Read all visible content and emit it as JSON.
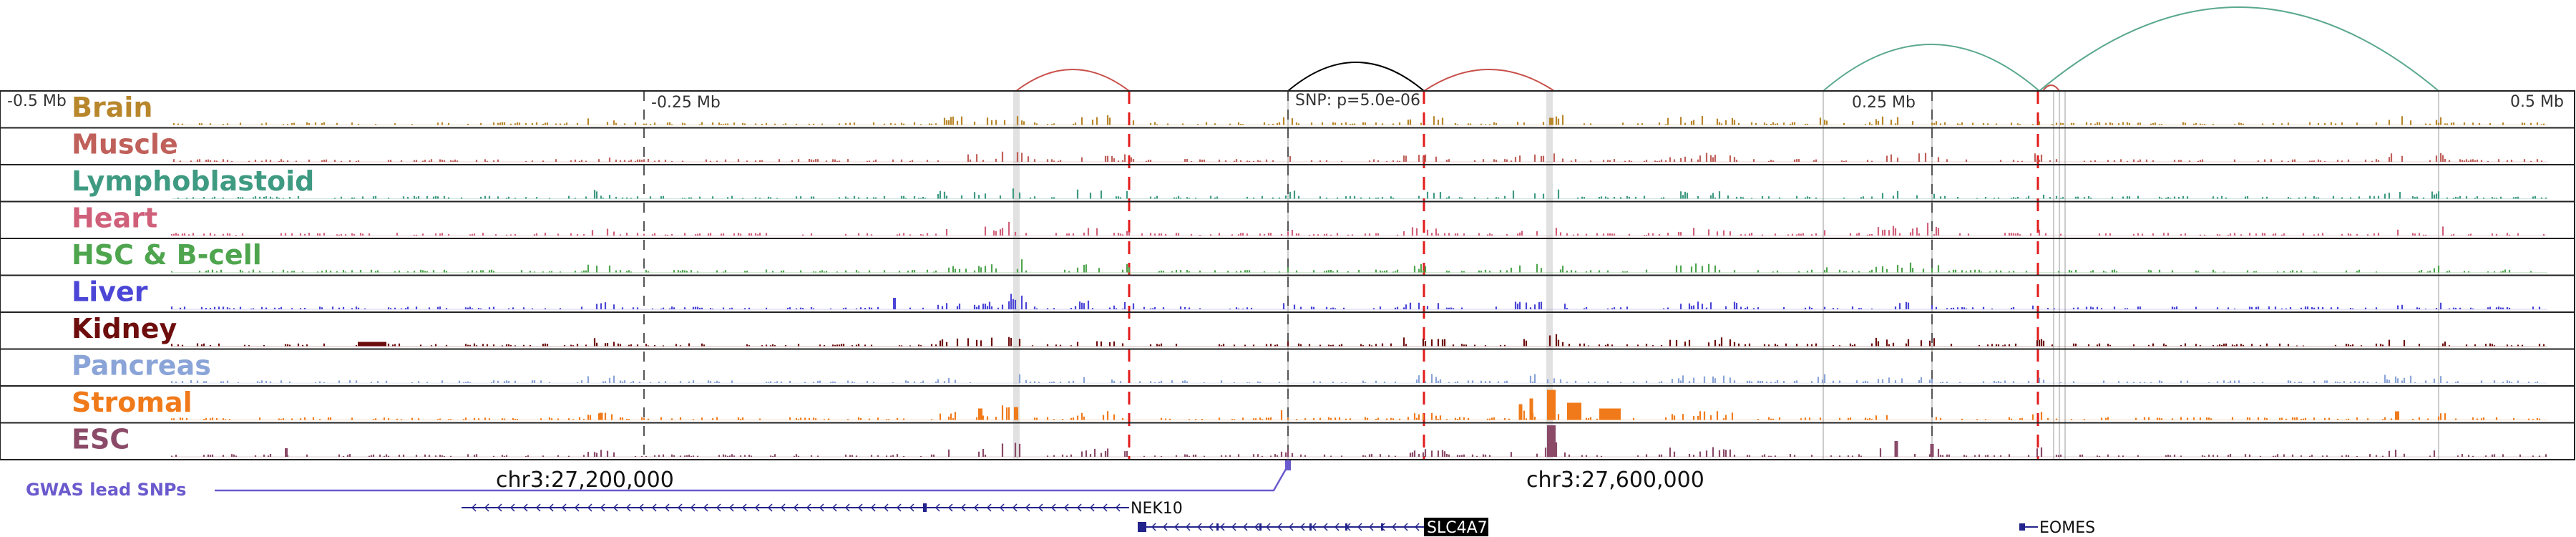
{
  "tracks": [
    {
      "label": "Brain",
      "color": "#b8862b"
    },
    {
      "label": "Muscle",
      "color": "#c0605a"
    },
    {
      "label": "Lymphoblastoid",
      "color": "#3f9a82"
    },
    {
      "label": "Heart",
      "color": "#d0607a"
    },
    {
      "label": "HSC & B-cell",
      "color": "#4ea54e"
    },
    {
      "label": "Liver",
      "color": "#4b46d6"
    },
    {
      "label": "Kidney",
      "color": "#6e0d0d"
    },
    {
      "label": "Pancreas",
      "color": "#8aa4d8"
    },
    {
      "label": "Stromal",
      "color": "#f07a1a"
    },
    {
      "label": "ESC",
      "color": "#8a4a68"
    }
  ],
  "axis": {
    "left": "-0.5 Mb",
    "mid_left": "-0.25 Mb",
    "snp": "SNP: p=5.0e-06",
    "mid_right": "0.25 Mb",
    "right": "0.5 Mb"
  },
  "coords": {
    "a": "chr3:27,200,000",
    "b": "chr3:27,600,000"
  },
  "gwas_label": "GWAS lead SNPs",
  "genes": [
    {
      "name": "NEK10",
      "highlight": false
    },
    {
      "name": "SLC4A7",
      "highlight": true
    },
    {
      "name": "EOMES",
      "highlight": false
    }
  ],
  "colors": {
    "red_dash": "#e21b1b",
    "gwas": "#6a5acd",
    "arc_red": "#c8504a",
    "arc_black": "#000000",
    "arc_teal": "#5aa88f",
    "gene": "#23238c"
  }
}
